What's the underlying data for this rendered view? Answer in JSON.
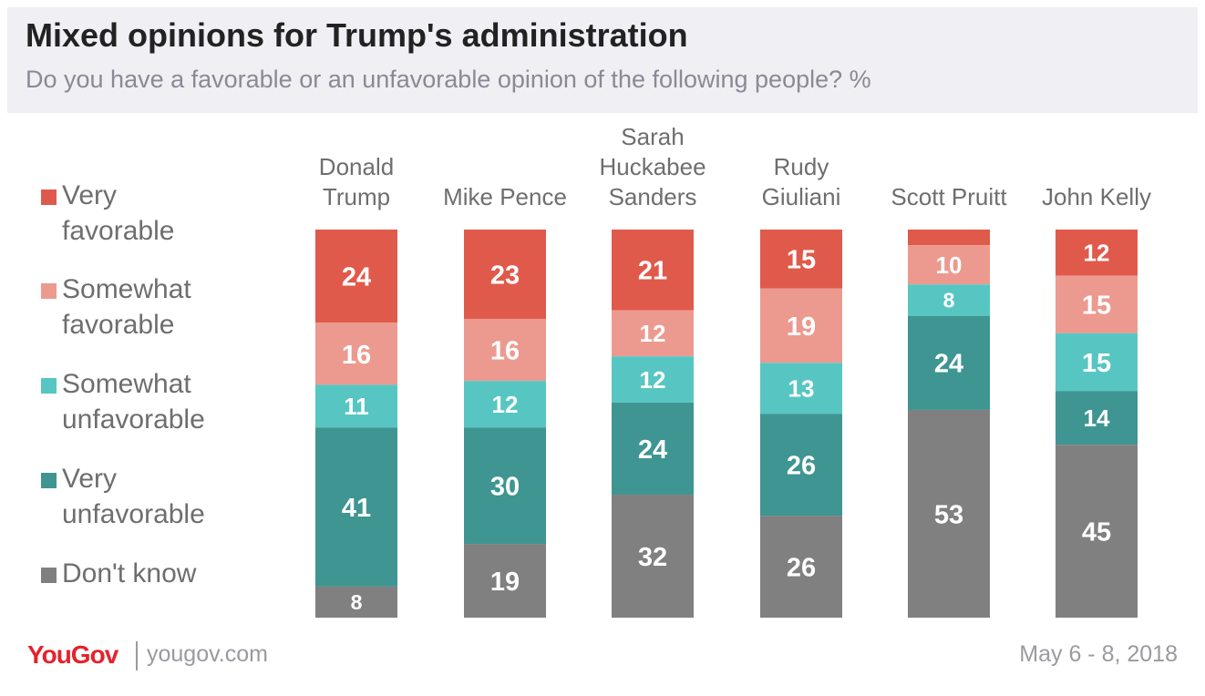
{
  "header": {
    "title": "Mixed opinions for Trump's administration",
    "subtitle": "Do you have a favorable or an unfavorable opinion of the following people? %"
  },
  "footer": {
    "logo": "YouGov",
    "url": "yougov.com",
    "date": "May 6 - 8, 2018"
  },
  "colors": {
    "very_favorable": "#e05a4b",
    "somewhat_favorable": "#ec9a8f",
    "somewhat_unfavorable": "#57c6c3",
    "very_unfavorable": "#3f9592",
    "dont_know": "#808080"
  },
  "chart_data": {
    "type": "bar",
    "stacked": true,
    "unit": "%",
    "categories": [
      "Donald Trump",
      "Mike Pence",
      "Sarah Huckabee Sanders",
      "Rudy Giuliani",
      "Scott Pruitt",
      "John Kelly"
    ],
    "category_lines": [
      [
        "Donald",
        "Trump"
      ],
      [
        "Mike Pence"
      ],
      [
        "Sarah",
        "Huckabee",
        "Sanders"
      ],
      [
        "Rudy",
        "Giuliani"
      ],
      [
        "Scott Pruitt"
      ],
      [
        "John Kelly"
      ]
    ],
    "series": [
      {
        "name": "Very favorable",
        "label_lines": [
          "Very",
          "favorable"
        ],
        "color": "#e05a4b",
        "values": [
          24,
          23,
          21,
          15,
          4,
          12
        ]
      },
      {
        "name": "Somewhat favorable",
        "label_lines": [
          "Somewhat",
          "favorable"
        ],
        "color": "#ec9a8f",
        "values": [
          16,
          16,
          12,
          19,
          10,
          15
        ]
      },
      {
        "name": "Somewhat unfavorable",
        "label_lines": [
          "Somewhat",
          "unfavorable"
        ],
        "color": "#57c6c3",
        "values": [
          11,
          12,
          12,
          13,
          8,
          15
        ]
      },
      {
        "name": "Very unfavorable",
        "label_lines": [
          "Very",
          "unfavorable"
        ],
        "color": "#3f9592",
        "values": [
          41,
          30,
          24,
          26,
          24,
          14
        ]
      },
      {
        "name": "Don't know",
        "label_lines": [
          "Don't know"
        ],
        "color": "#808080",
        "values": [
          8,
          19,
          32,
          26,
          53,
          45
        ]
      }
    ],
    "value_labels_hidden": [
      [],
      [],
      [],
      [],
      [
        0
      ],
      []
    ],
    "legend_position": "left",
    "grid": false,
    "ylim": [
      0,
      100
    ]
  }
}
